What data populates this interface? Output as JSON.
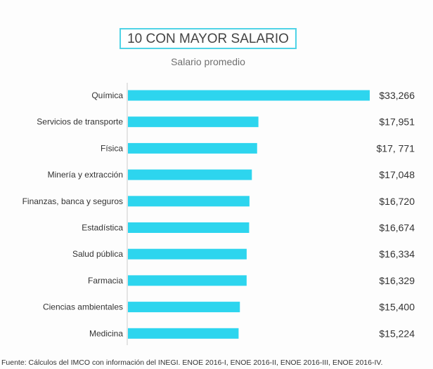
{
  "chart_data": {
    "type": "bar",
    "orientation": "horizontal",
    "title": "10 CON MAYOR SALARIO",
    "subtitle": "Salario promedio",
    "categories": [
      "Química",
      "Servicios de transporte",
      "Física",
      "Minería y extracción",
      "Finanzas, banca y seguros",
      "Estadística",
      "Salud pública",
      "Farmacia",
      "Ciencias ambientales",
      "Medicina"
    ],
    "values": [
      33266,
      17951,
      17771,
      17048,
      16720,
      16674,
      16334,
      16329,
      15400,
      15224
    ],
    "value_labels": [
      "$33,266",
      "$17,951",
      "$17, 771",
      "$17,048",
      "$16,720",
      "$16,674",
      "$16,334",
      "$16,329",
      "$15,400",
      "$15,224"
    ],
    "xlim": [
      0,
      33266
    ],
    "grid": false,
    "bar_color": "#2dd5ee",
    "source": "Fuente: Cálculos del IMCO con información del INEGI. ENOE 2016-I, ENOE 2016-II, ENOE 2016-III, ENOE 2016-IV."
  }
}
